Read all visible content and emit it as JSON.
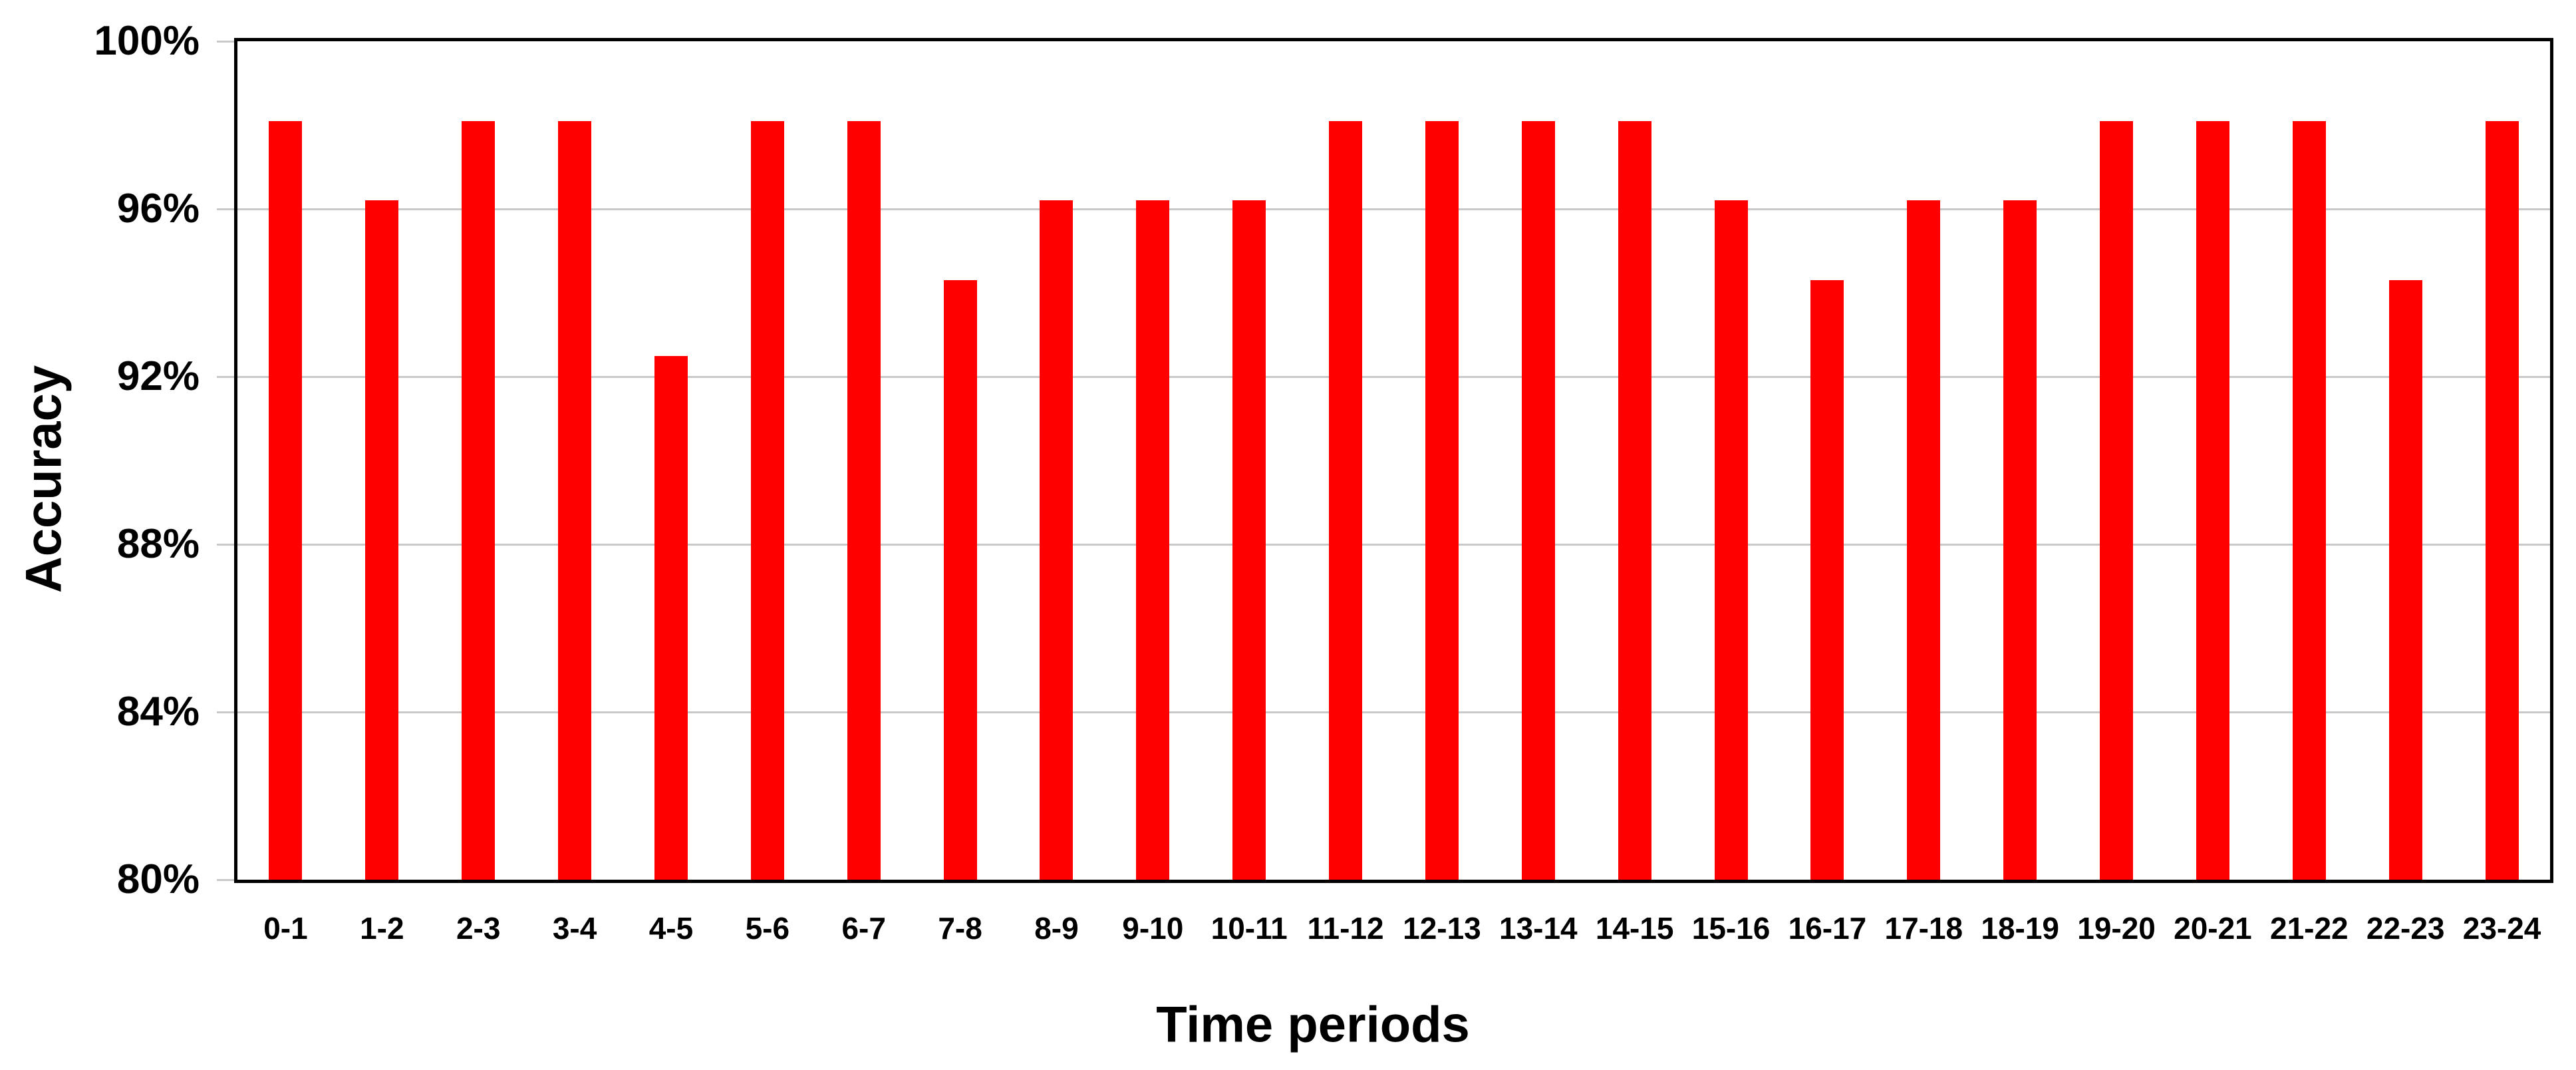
{
  "chart_data": {
    "type": "bar",
    "title": "",
    "xlabel": "Time periods",
    "ylabel": "Accuracy",
    "categories": [
      "0-1",
      "1-2",
      "2-3",
      "3-4",
      "4-5",
      "5-6",
      "6-7",
      "7-8",
      "8-9",
      "9-10",
      "10-11",
      "11-12",
      "12-13",
      "13-14",
      "14-15",
      "15-16",
      "16-17",
      "17-18",
      "18-19",
      "19-20",
      "20-21",
      "21-22",
      "22-23",
      "23-24"
    ],
    "values": [
      98.1,
      96.2,
      98.1,
      98.1,
      92.5,
      98.1,
      98.1,
      94.3,
      96.2,
      96.2,
      96.2,
      98.1,
      98.1,
      98.1,
      98.1,
      96.2,
      94.3,
      96.2,
      96.2,
      98.1,
      98.1,
      98.1,
      94.3,
      98.1
    ],
    "ylim": [
      80,
      100
    ],
    "y_ticks": [
      {
        "value": 100,
        "label": "100%"
      },
      {
        "value": 96,
        "label": "96%"
      },
      {
        "value": 92,
        "label": "92%"
      },
      {
        "value": 88,
        "label": "88%"
      },
      {
        "value": 84,
        "label": "84%"
      },
      {
        "value": 80,
        "label": "80%"
      }
    ],
    "bar_color": "#ff0000",
    "gridline_color": "#c9c9c9",
    "axis_color": "#000000",
    "grid": true,
    "legend_position": "none"
  }
}
